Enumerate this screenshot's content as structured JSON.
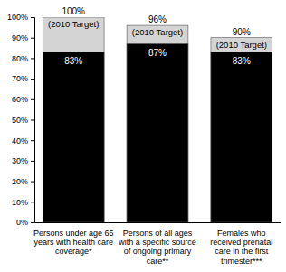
{
  "chart_data": {
    "type": "bar",
    "categories": [
      "Persons under age 65 years with health care coverage*",
      "Persons of all ages with a specific source of ongoing primary care**",
      "Females who received prenatal care in the first trimester***"
    ],
    "series": [
      {
        "name": "(2010 Target)",
        "color": "#d4d4d4",
        "values": [
          100,
          96,
          90
        ],
        "value_labels": [
          "100%",
          "96%",
          "90%"
        ]
      },
      {
        "color": "#000000",
        "values": [
          83,
          87,
          83
        ],
        "value_labels": [
          "83%",
          "87%",
          "83%"
        ]
      }
    ],
    "ylim": [
      0,
      100
    ],
    "yticks": [
      {
        "value": 0,
        "label": "0%"
      },
      {
        "value": 10,
        "label": "10%"
      },
      {
        "value": 20,
        "label": "20%"
      },
      {
        "value": 30,
        "label": "30%"
      },
      {
        "value": 40,
        "label": "40%"
      },
      {
        "value": 50,
        "label": "50%"
      },
      {
        "value": 60,
        "label": "60%"
      },
      {
        "value": 70,
        "label": "70%"
      },
      {
        "value": 80,
        "label": "80%"
      },
      {
        "value": 90,
        "label": "90%"
      },
      {
        "value": 100,
        "label": "100%"
      }
    ],
    "data_labels": true,
    "grid": false
  }
}
